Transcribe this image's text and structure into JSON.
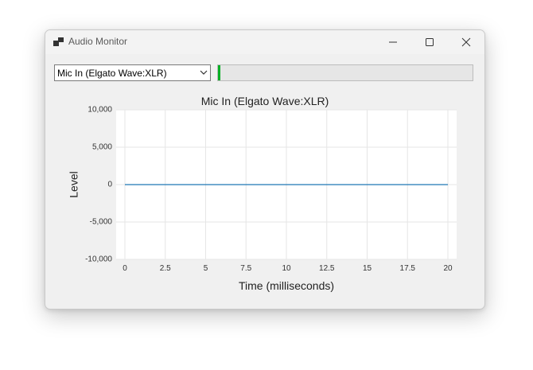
{
  "window": {
    "title": "Audio Monitor",
    "icon": "app-window-icon",
    "controls": [
      "minimize-icon",
      "maximize-icon",
      "close-icon"
    ]
  },
  "toolbar": {
    "device_selected": "Mic In (Elgato Wave:XLR)",
    "level_meter_fill": 0.005
  },
  "chart_data": {
    "type": "line",
    "title": "Mic In (Elgato Wave:XLR)",
    "xlabel": "Time (milliseconds)",
    "ylabel": "Level",
    "xlim": [
      0,
      20
    ],
    "ylim": [
      -10000,
      10000
    ],
    "xticks": [
      0,
      2.5,
      5,
      7.5,
      10,
      12.5,
      15,
      17.5,
      20
    ],
    "xtick_labels": [
      "0",
      "2.5",
      "5",
      "7.5",
      "10",
      "12.5",
      "15",
      "17.5",
      "20"
    ],
    "yticks": [
      10000,
      5000,
      0,
      -5000,
      -10000
    ],
    "ytick_labels": [
      "10,000",
      "5,000",
      "0",
      "-5,000",
      "-10,000"
    ],
    "grid": true,
    "series": [
      {
        "color": "#1f77b4",
        "x": [
          0,
          2.5,
          5,
          7.5,
          10,
          12.5,
          15,
          17.5,
          20
        ],
        "y": [
          0,
          0,
          0,
          0,
          0,
          0,
          0,
          0,
          0
        ]
      }
    ]
  }
}
